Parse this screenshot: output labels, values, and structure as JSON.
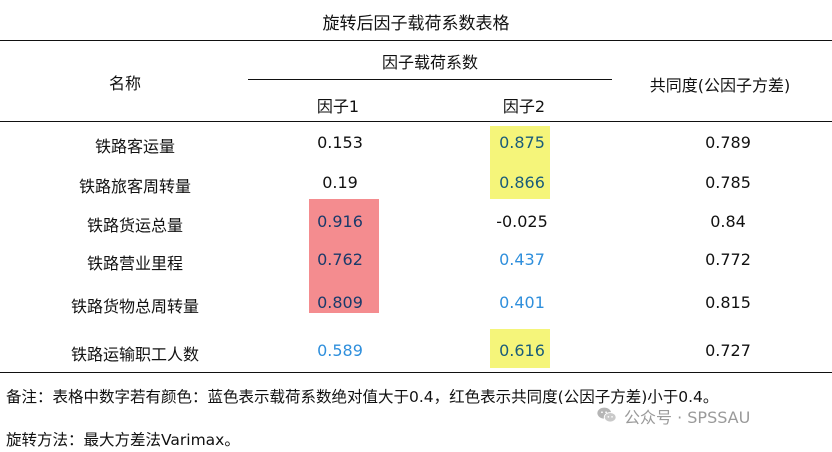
{
  "title": "旋转后因子载荷系数表格",
  "header": {
    "name": "名称",
    "group": "因子载荷系数",
    "factor1": "因子1",
    "factor2": "因子2",
    "communality": "共同度(公因子方差)"
  },
  "colors": {
    "red_highlight": "#f48c8f",
    "yellow_highlight": "#f5f57a",
    "blue_text": "#2f8fdc"
  },
  "rows": [
    {
      "name": "铁路客运量",
      "f1": "0.153",
      "f2": "0.875",
      "comm": "0.789"
    },
    {
      "name": "铁路旅客周转量",
      "f1": "0.19",
      "f2": "0.866",
      "comm": "0.785"
    },
    {
      "name": "铁路货运总量",
      "f1": "0.916",
      "f2": "-0.025",
      "comm": "0.84"
    },
    {
      "name": "铁路营业里程",
      "f1": "0.762",
      "f2": "0.437",
      "comm": "0.772"
    },
    {
      "name": "铁路货物总周转量",
      "f1": "0.809",
      "f2": "0.401",
      "comm": "0.815"
    },
    {
      "name": "铁路运输职工人数",
      "f1": "0.589",
      "f2": "0.616",
      "comm": "0.727"
    }
  ],
  "notes": {
    "note1": "备注：表格中数字若有颜色：蓝色表示载荷系数绝对值大于0.4，红色表示共同度(公因子方差)小于0.4。",
    "note2": "旋转方法：最大方差法Varimax。"
  },
  "watermark": {
    "icon": "wechat-icon",
    "text": "公众号 · SPSSAU"
  }
}
